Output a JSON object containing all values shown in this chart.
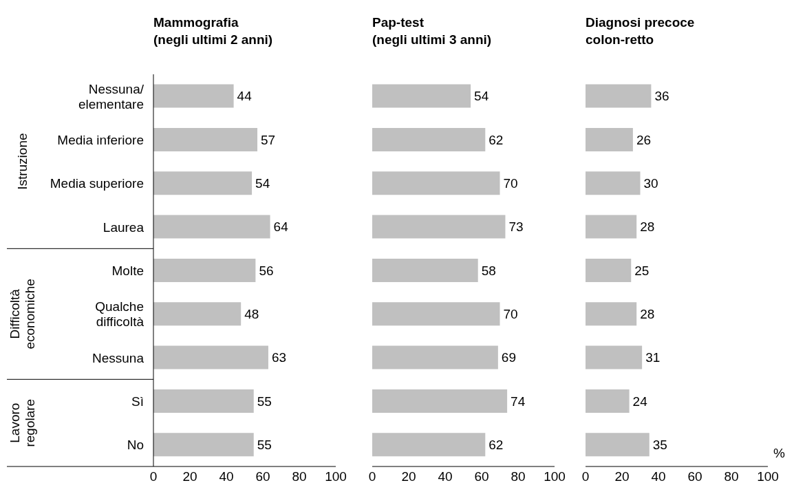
{
  "chart_data": [
    {
      "type": "bar",
      "orientation": "horizontal",
      "title": "Mammografia\n(negli ultimi 2 anni)",
      "categories": [
        "Nessuna/\nelementare",
        "Media inferiore",
        "Media superiore",
        "Laurea",
        "Molte",
        "Qualche\ndifficoltà",
        "Nessuna",
        "Sì",
        "No"
      ],
      "values": [
        44,
        57,
        54,
        64,
        56,
        48,
        63,
        55,
        55
      ],
      "color": "#c0c0c0",
      "xlim": [
        0,
        100
      ],
      "xticks": [
        0,
        20,
        40,
        60,
        80,
        100
      ],
      "data_labels": true,
      "annotations": [
        "Istruzione",
        "Difficoltà\neconomiche",
        "Lavoro\nregolare"
      ]
    },
    {
      "type": "bar",
      "orientation": "horizontal",
      "title": "Pap-test\n(negli ultimi 3 anni)",
      "categories": [
        null,
        null,
        null,
        null,
        null,
        null,
        null,
        null,
        null
      ],
      "values": [
        54,
        62,
        70,
        73,
        58,
        70,
        69,
        74,
        62
      ],
      "color": "#c0c0c0",
      "xlim": [
        0,
        100
      ],
      "xticks": [
        0,
        20,
        40,
        60,
        80,
        100
      ],
      "data_labels": true,
      "tick_labels": "x"
    },
    {
      "type": "bar",
      "orientation": "horizontal",
      "title": "Diagnosi precoce\ncolon-retto",
      "categories": [
        null,
        null,
        null,
        null,
        null,
        null,
        null,
        null,
        null
      ],
      "values": [
        36,
        26,
        30,
        28,
        25,
        28,
        31,
        24,
        35
      ],
      "color": "#c0c0c0",
      "xlim": [
        0,
        100
      ],
      "xticks": [
        0,
        20,
        40,
        60,
        80,
        100
      ],
      "data_labels": true,
      "tick_labels": "x",
      "annotations": [
        "%"
      ]
    }
  ]
}
